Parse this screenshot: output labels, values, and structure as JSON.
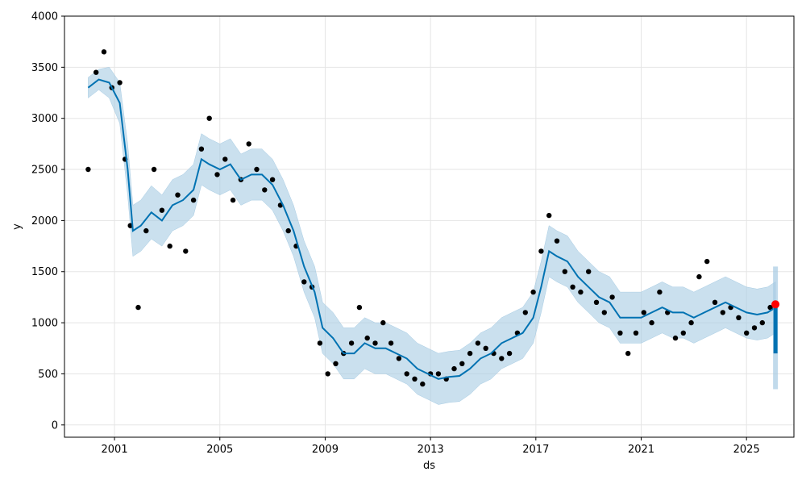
{
  "chart_data": {
    "type": "scatter",
    "title": "",
    "xlabel": "ds",
    "ylabel": "y",
    "xlim": [
      1999.1,
      2026.8
    ],
    "ylim": [
      -120,
      4000
    ],
    "x_ticks": [
      "2001",
      "2005",
      "2009",
      "2013",
      "2017",
      "2021",
      "2025"
    ],
    "y_ticks": [
      0,
      500,
      1000,
      1500,
      2000,
      2500,
      3000,
      3500,
      4000
    ],
    "grid": true,
    "colors": {
      "observed": "#000000",
      "forecast": "#0072b2",
      "interval": "#a6cbe3",
      "highlight": "#ff0000",
      "grid": "#e5e5e5"
    },
    "series": [
      {
        "kind": "observed",
        "x": [
          2000.0,
          2000.3,
          2000.6,
          2000.9,
          2001.2,
          2001.4,
          2001.6,
          2001.9,
          2002.2,
          2002.5,
          2002.8,
          2003.1,
          2003.4,
          2003.7,
          2004.0,
          2004.3,
          2004.6,
          2004.9,
          2005.2,
          2005.5,
          2005.8,
          2006.1,
          2006.4,
          2006.7,
          2007.0,
          2007.3,
          2007.6,
          2007.9,
          2008.2,
          2008.5,
          2008.8,
          2009.1,
          2009.4,
          2009.7,
          2010.0,
          2010.3,
          2010.6,
          2010.9,
          2011.2,
          2011.5,
          2011.8,
          2012.1,
          2012.4,
          2012.7,
          2013.0,
          2013.3,
          2013.6,
          2013.9,
          2014.2,
          2014.5,
          2014.8,
          2015.1,
          2015.4,
          2015.7,
          2016.0,
          2016.3,
          2016.6,
          2016.9,
          2017.2,
          2017.5,
          2017.8,
          2018.1,
          2018.4,
          2018.7,
          2019.0,
          2019.3,
          2019.6,
          2019.9,
          2020.2,
          2020.5,
          2020.8,
          2021.1,
          2021.4,
          2021.7,
          2022.0,
          2022.3,
          2022.6,
          2022.9,
          2023.2,
          2023.5,
          2023.8,
          2024.1,
          2024.4,
          2024.7,
          2025.0,
          2025.3,
          2025.6,
          2025.9,
          2026.1
        ],
        "y": [
          2500,
          3450,
          3650,
          3300,
          3350,
          2600,
          1950,
          1150,
          1900,
          2500,
          2100,
          1750,
          2250,
          1700,
          2200,
          2700,
          3000,
          2450,
          2600,
          2200,
          2400,
          2750,
          2500,
          2300,
          2400,
          2150,
          1900,
          1750,
          1400,
          1350,
          800,
          500,
          600,
          700,
          800,
          1150,
          850,
          800,
          1000,
          800,
          650,
          500,
          450,
          400,
          500,
          500,
          450,
          550,
          600,
          700,
          800,
          750,
          700,
          650,
          700,
          900,
          1100,
          1300,
          1700,
          2050,
          1800,
          1500,
          1350,
          1300,
          1500,
          1200,
          1100,
          1250,
          900,
          700,
          900,
          1100,
          1000,
          1300,
          1100,
          850,
          900,
          1000,
          1450,
          1600,
          1200,
          1100,
          1150,
          1050,
          900,
          950,
          1000,
          1150,
          1180
        ]
      },
      {
        "kind": "forecast",
        "x": [
          2000.0,
          2000.4,
          2000.8,
          2001.2,
          2001.5,
          2001.7,
          2002.0,
          2002.4,
          2002.8,
          2003.2,
          2003.6,
          2004.0,
          2004.3,
          2004.6,
          2005.0,
          2005.4,
          2005.8,
          2006.2,
          2006.6,
          2007.0,
          2007.4,
          2007.8,
          2008.2,
          2008.6,
          2008.9,
          2009.3,
          2009.7,
          2010.1,
          2010.5,
          2010.9,
          2011.3,
          2011.7,
          2012.1,
          2012.5,
          2012.9,
          2013.3,
          2013.7,
          2014.1,
          2014.5,
          2014.9,
          2015.3,
          2015.7,
          2016.1,
          2016.5,
          2016.9,
          2017.2,
          2017.5,
          2017.8,
          2018.2,
          2018.6,
          2019.0,
          2019.4,
          2019.8,
          2020.2,
          2020.6,
          2021.0,
          2021.4,
          2021.8,
          2022.2,
          2022.6,
          2023.0,
          2023.4,
          2023.8,
          2024.2,
          2024.6,
          2025.0,
          2025.4,
          2025.8,
          2026.1
        ],
        "yhat": [
          3300,
          3380,
          3350,
          3150,
          2500,
          1900,
          1950,
          2080,
          2000,
          2150,
          2200,
          2300,
          2600,
          2550,
          2500,
          2550,
          2400,
          2450,
          2450,
          2350,
          2150,
          1900,
          1550,
          1300,
          950,
          850,
          700,
          700,
          800,
          750,
          750,
          700,
          650,
          550,
          500,
          450,
          470,
          480,
          550,
          650,
          700,
          800,
          850,
          900,
          1050,
          1350,
          1700,
          1650,
          1600,
          1450,
          1350,
          1250,
          1200,
          1050,
          1050,
          1050,
          1100,
          1150,
          1100,
          1100,
          1050,
          1100,
          1150,
          1200,
          1150,
          1100,
          1080,
          1100,
          1150
        ],
        "yhat_lower": [
          3200,
          3280,
          3200,
          2950,
          2250,
          1650,
          1700,
          1820,
          1750,
          1900,
          1950,
          2050,
          2350,
          2300,
          2250,
          2300,
          2150,
          2200,
          2200,
          2100,
          1900,
          1650,
          1300,
          1050,
          700,
          600,
          450,
          450,
          550,
          500,
          500,
          450,
          400,
          300,
          250,
          200,
          220,
          230,
          300,
          400,
          450,
          550,
          600,
          650,
          800,
          1100,
          1450,
          1400,
          1350,
          1200,
          1100,
          1000,
          950,
          800,
          800,
          800,
          850,
          900,
          850,
          850,
          800,
          850,
          900,
          950,
          900,
          850,
          830,
          850,
          900
        ],
        "yhat_upper": [
          3400,
          3480,
          3500,
          3350,
          2750,
          2150,
          2200,
          2340,
          2250,
          2400,
          2450,
          2550,
          2850,
          2800,
          2750,
          2800,
          2650,
          2700,
          2700,
          2600,
          2400,
          2150,
          1800,
          1550,
          1200,
          1100,
          950,
          950,
          1050,
          1000,
          1000,
          950,
          900,
          800,
          750,
          700,
          720,
          730,
          800,
          900,
          950,
          1050,
          1100,
          1150,
          1300,
          1600,
          1950,
          1900,
          1850,
          1700,
          1600,
          1500,
          1450,
          1300,
          1300,
          1300,
          1350,
          1400,
          1350,
          1350,
          1300,
          1350,
          1400,
          1450,
          1400,
          1350,
          1330,
          1350,
          1400
        ]
      },
      {
        "kind": "highlight",
        "x": [
          2026.1
        ],
        "y": [
          1180
        ]
      }
    ],
    "forecast_tail": {
      "x": 2026.1,
      "yhat_range": [
        700,
        1150
      ],
      "interval_range": [
        350,
        1550
      ]
    }
  }
}
